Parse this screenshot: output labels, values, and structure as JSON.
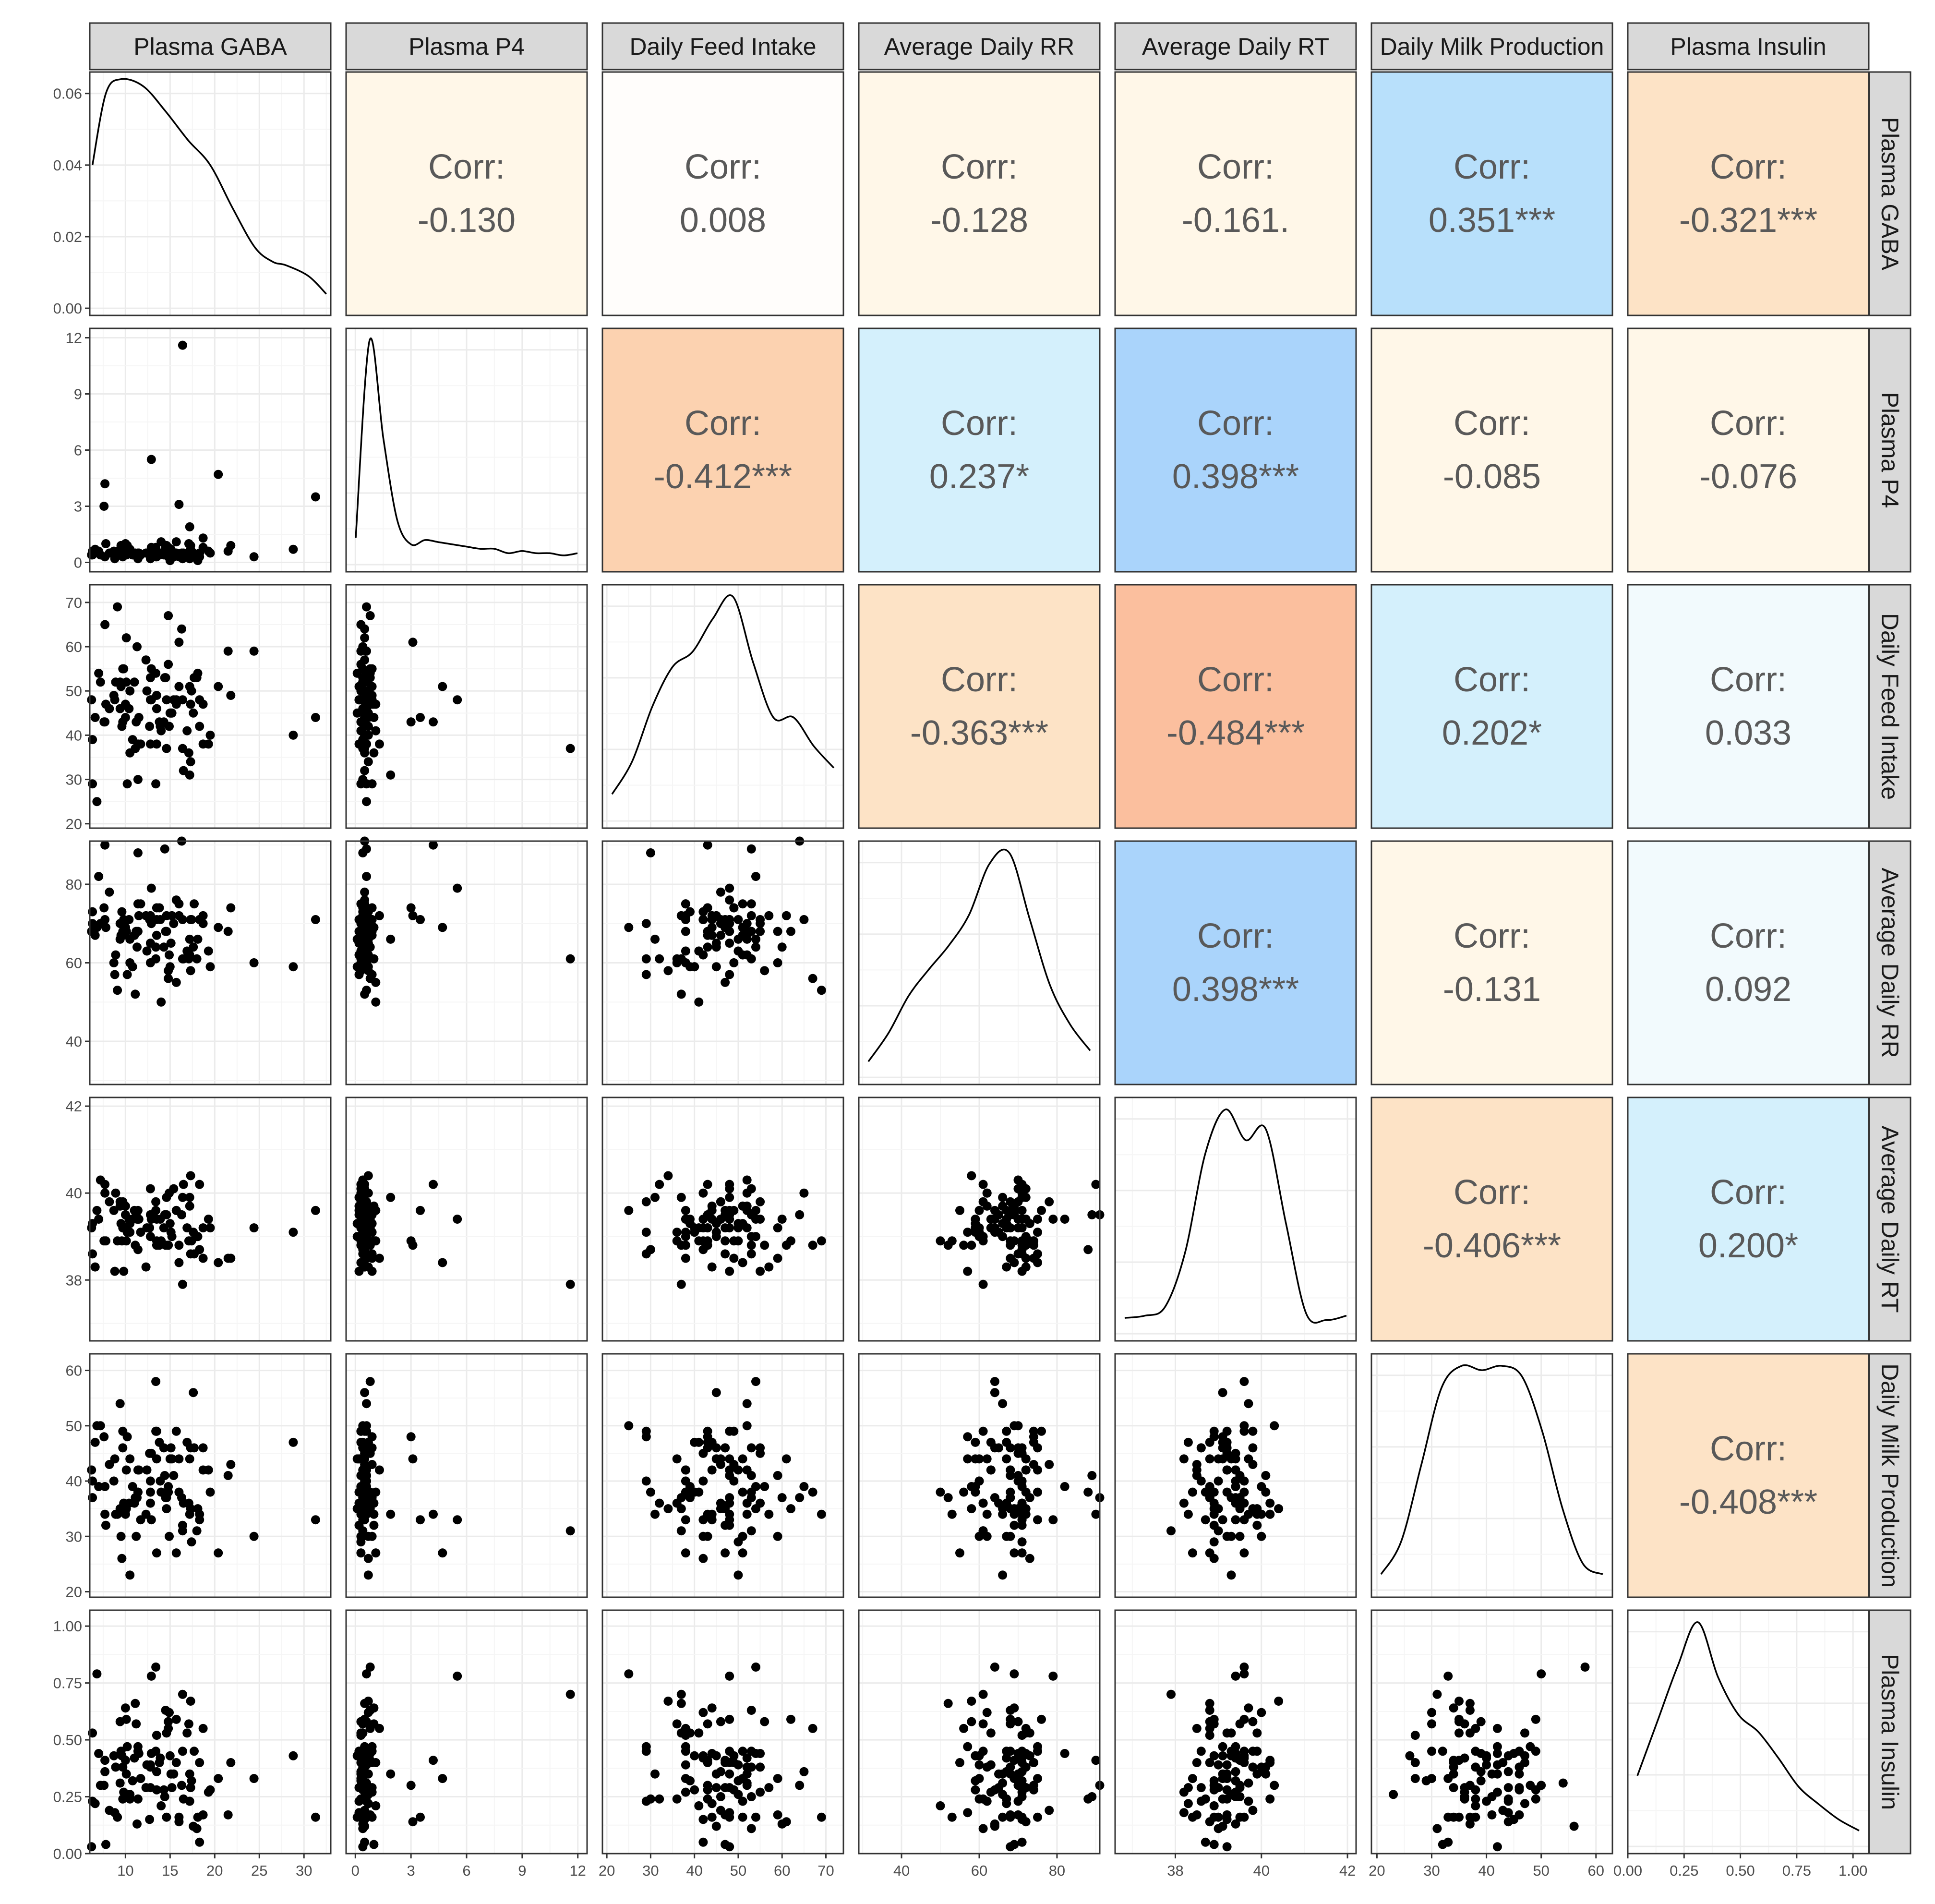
{
  "variables": [
    "Plasma GABA",
    "Plasma P4",
    "Daily Feed Intake",
    "Average Daily RR",
    "Average Daily RT",
    "Daily Milk Production",
    "Plasma Insulin"
  ],
  "corr_label": "Corr:",
  "colors": {
    "strip_fill": "#d9d9d9",
    "grid_major": "#ebebeb",
    "grid_minor": "#f5f5f5",
    "point": "#000000",
    "neg_light": "#fff7e8",
    "neg_mid": "#fde3c6",
    "neg_strong": "#fcd2b0",
    "neg_stronger": "#fbbf9e",
    "pos_lightest": "#f2fafd",
    "pos_light": "#d4f0fc",
    "pos_strong": "#b8e0fb",
    "pos_stronger": "#aad4fb",
    "neutral": "#fffdfb"
  },
  "chart_data": {
    "type": "scatter",
    "plot_kind": "pairs-matrix",
    "axis_ticks": [
      [
        "10",
        "15",
        "20",
        "25",
        "30"
      ],
      [
        "0",
        "3",
        "6",
        "9",
        "12"
      ],
      [
        "20",
        "30",
        "40",
        "50",
        "60",
        "70"
      ],
      [
        "40",
        "60",
        "80"
      ],
      [
        "38",
        "40",
        "42"
      ],
      [
        "20",
        "30",
        "40",
        "50",
        "60"
      ],
      [
        "0.00",
        "0.25",
        "0.50",
        "0.75",
        "1.00"
      ]
    ],
    "diag_ticks": [
      "0.00",
      "0.02",
      "0.04",
      "0.06"
    ],
    "diag_ylim": [
      -0.002,
      0.066
    ],
    "ranges": [
      [
        6,
        33
      ],
      [
        -0.5,
        12.5
      ],
      [
        19,
        74
      ],
      [
        29,
        91
      ],
      [
        36.6,
        42.2
      ],
      [
        19,
        63
      ],
      [
        0.0,
        1.07
      ]
    ],
    "densities": [
      [
        0.04,
        0.06,
        0.064,
        0.062,
        0.055,
        0.047,
        0.04,
        0.028,
        0.017,
        0.013,
        0.012,
        0.009,
        0.004
      ],
      [
        0.1,
        1.0,
        0.55,
        0.18,
        0.07,
        0.09,
        0.08,
        0.07,
        0.06,
        0.05,
        0.05,
        0.03,
        0.04,
        0.03,
        0.03,
        0.02,
        0.03
      ],
      [
        0.1,
        0.25,
        0.5,
        0.68,
        0.75,
        0.9,
        1.0,
        0.7,
        0.45,
        0.45,
        0.32,
        0.22
      ],
      [
        0.05,
        0.18,
        0.35,
        0.47,
        0.58,
        0.72,
        0.95,
        1.0,
        0.7,
        0.4,
        0.22,
        0.1
      ],
      [
        0.05,
        0.06,
        0.1,
        0.35,
        0.8,
        1.0,
        0.86,
        0.91,
        0.48,
        0.07,
        0.04,
        0.06
      ],
      [
        0.05,
        0.2,
        0.55,
        0.9,
        1.0,
        0.98,
        1.0,
        0.95,
        0.7,
        0.35,
        0.1,
        0.05
      ],
      [
        0.3,
        0.55,
        0.8,
        1.0,
        0.75,
        0.58,
        0.5,
        0.38,
        0.25,
        0.17,
        0.1,
        0.05
      ]
    ],
    "correlations": [
      {
        "row": 0,
        "col": 1,
        "value": "-0.130",
        "color": "neg_light"
      },
      {
        "row": 0,
        "col": 2,
        "value": "0.008",
        "color": "neutral"
      },
      {
        "row": 0,
        "col": 3,
        "value": "-0.128",
        "color": "neg_light"
      },
      {
        "row": 0,
        "col": 4,
        "value": "-0.161.",
        "color": "neg_light"
      },
      {
        "row": 0,
        "col": 5,
        "value": "0.351***",
        "color": "pos_strong"
      },
      {
        "row": 0,
        "col": 6,
        "value": "-0.321***",
        "color": "neg_mid"
      },
      {
        "row": 1,
        "col": 2,
        "value": "-0.412***",
        "color": "neg_strong"
      },
      {
        "row": 1,
        "col": 3,
        "value": "0.237*",
        "color": "pos_light"
      },
      {
        "row": 1,
        "col": 4,
        "value": "0.398***",
        "color": "pos_stronger"
      },
      {
        "row": 1,
        "col": 5,
        "value": "-0.085",
        "color": "neg_light"
      },
      {
        "row": 1,
        "col": 6,
        "value": "-0.076",
        "color": "neg_light"
      },
      {
        "row": 2,
        "col": 3,
        "value": "-0.363***",
        "color": "neg_mid"
      },
      {
        "row": 2,
        "col": 4,
        "value": "-0.484***",
        "color": "neg_stronger"
      },
      {
        "row": 2,
        "col": 5,
        "value": "0.202*",
        "color": "pos_light"
      },
      {
        "row": 2,
        "col": 6,
        "value": "0.033",
        "color": "pos_lightest"
      },
      {
        "row": 3,
        "col": 4,
        "value": "0.398***",
        "color": "pos_stronger"
      },
      {
        "row": 3,
        "col": 5,
        "value": "-0.131",
        "color": "neg_light"
      },
      {
        "row": 3,
        "col": 6,
        "value": "0.092",
        "color": "pos_lightest"
      },
      {
        "row": 4,
        "col": 5,
        "value": "-0.406***",
        "color": "neg_mid"
      },
      {
        "row": 4,
        "col": 6,
        "value": "0.200*",
        "color": "pos_light"
      },
      {
        "row": 5,
        "col": 6,
        "value": "-0.408***",
        "color": "neg_mid"
      }
    ],
    "points": [
      [
        7.2,
        0.4,
        52,
        70,
        40.3,
        50,
        0.3
      ],
      [
        10.0,
        1.0,
        44,
        69,
        39.7,
        34,
        0.64
      ],
      [
        12.9,
        5.5,
        48,
        79,
        39.4,
        33,
        0.78
      ],
      [
        16.4,
        11.6,
        37,
        61,
        37.9,
        31,
        0.7
      ],
      [
        16.5,
        0.5,
        32,
        61,
        40.2,
        36,
        0.24
      ],
      [
        7.7,
        4.2,
        43,
        90,
        40.2,
        34,
        0.41
      ],
      [
        7.8,
        1.0,
        47,
        69,
        38.9,
        32,
        0.04
      ],
      [
        18.7,
        1.3,
        38,
        72,
        38.5,
        42,
        0.55
      ],
      [
        8.2,
        0.5,
        46,
        78,
        39.8,
        43,
        0.19
      ],
      [
        13.4,
        0.3,
        29,
        61,
        39.8,
        49,
        0.45
      ],
      [
        8.9,
        0.4,
        52,
        62,
        40.0,
        34,
        0.38
      ],
      [
        6.2,
        0.4,
        48,
        68,
        39.2,
        42,
        0.03
      ],
      [
        18.3,
        0.3,
        48,
        71,
        40.2,
        34,
        0.4
      ],
      [
        31.3,
        3.5,
        44,
        71,
        39.6,
        33,
        0.16
      ],
      [
        11.4,
        0.4,
        30,
        88,
        38.7,
        38,
        0.24
      ],
      [
        11.1,
        0.5,
        37,
        52,
        38.8,
        37,
        0.66
      ],
      [
        6.8,
        0.6,
        25,
        69,
        39.6,
        50,
        0.79
      ],
      [
        10.2,
        0.9,
        29,
        57,
        39.1,
        48,
        0.47
      ],
      [
        15.7,
        1.1,
        47,
        55,
        39.6,
        27,
        0.4
      ],
      [
        17.3,
        0.7,
        34,
        58,
        40.4,
        35,
        0.67
      ],
      [
        20.4,
        4.7,
        51,
        69,
        38.4,
        27,
        0.33
      ],
      [
        16.3,
        0.5,
        64,
        91,
        39.5,
        37,
        0.3
      ],
      [
        7.6,
        3.0,
        43,
        74,
        38.9,
        48,
        0.3
      ],
      [
        10.5,
        0.7,
        50,
        66,
        39.3,
        23,
        0.26
      ],
      [
        28.8,
        0.7,
        40,
        59,
        39.1,
        47,
        0.43
      ],
      [
        13.5,
        0.3,
        38,
        71,
        38.8,
        27,
        0.52
      ],
      [
        12.3,
        0.5,
        57,
        72,
        38.3,
        34,
        0.29
      ],
      [
        9.1,
        0.6,
        69,
        53,
        38.9,
        34,
        0.16
      ],
      [
        21.8,
        0.9,
        49,
        74,
        38.5,
        43,
        0.4
      ],
      [
        18.0,
        0.4,
        53,
        61,
        39.0,
        31,
        0.11
      ],
      [
        16.9,
        0.3,
        41,
        63,
        39.2,
        47,
        0.53
      ],
      [
        9.6,
        0.7,
        42,
        73,
        38.9,
        26,
        0.43
      ],
      [
        13.5,
        0.6,
        49,
        74,
        38.9,
        49,
        0.28
      ],
      [
        6.3,
        0.6,
        29,
        70,
        38.6,
        40,
        0.23
      ],
      [
        17.2,
        1.9,
        31,
        66,
        39.9,
        34,
        0.35
      ],
      [
        13.4,
        0.8,
        54,
        64,
        39.6,
        58,
        0.82
      ],
      [
        17.6,
        0.5,
        45,
        64,
        39.1,
        56,
        0.12
      ],
      [
        24.4,
        0.3,
        59,
        60,
        39.2,
        30,
        0.33
      ],
      [
        9.7,
        0.3,
        43,
        67,
        39.2,
        49,
        0.24
      ],
      [
        21.5,
        0.6,
        59,
        68,
        38.5,
        41,
        0.17
      ],
      [
        17.2,
        0.2,
        51,
        62,
        39.7,
        44,
        0.23
      ],
      [
        17.3,
        0.9,
        47,
        71,
        38.6,
        46,
        0.29
      ],
      [
        15.0,
        0.1,
        45,
        59,
        39.3,
        44,
        0.43
      ],
      [
        17.7,
        0.4,
        53,
        75,
        38.6,
        46,
        0.45
      ],
      [
        12.8,
        0.5,
        53,
        72,
        40.1,
        38,
        0.38
      ],
      [
        14.8,
        0.8,
        67,
        56,
        38.8,
        38,
        0.55
      ],
      [
        9.4,
        0.6,
        52,
        66,
        39.7,
        54,
        0.31
      ],
      [
        14.4,
        0.6,
        53,
        89,
        39.5,
        41,
        0.25
      ],
      [
        17.1,
        1.0,
        36,
        61,
        38.9,
        36,
        0.57
      ],
      [
        6.6,
        0.7,
        44,
        67,
        38.3,
        47,
        0.22
      ],
      [
        19.5,
        0.5,
        40,
        59,
        39.2,
        38,
        0.28
      ],
      [
        16.0,
        3.1,
        61,
        72,
        38.8,
        44,
        0.14
      ],
      [
        18.1,
        0.1,
        54,
        66,
        39.0,
        35,
        0.16
      ],
      [
        10.1,
        0.5,
        62,
        68,
        38.9,
        35,
        0.59
      ],
      [
        14.0,
        1.1,
        41,
        50,
        38.9,
        38,
        0.21
      ],
      [
        18.7,
        0.8,
        47,
        70,
        39.2,
        46,
        0.17
      ],
      [
        9.8,
        0.9,
        55,
        71,
        38.2,
        36,
        0.27
      ],
      [
        12.8,
        0.2,
        48,
        65,
        39.5,
        36,
        0.29
      ],
      [
        14.6,
        0.4,
        37,
        72,
        39.9,
        35,
        0.53
      ],
      [
        18.3,
        0.5,
        42,
        71,
        38.7,
        33,
        0.05
      ],
      [
        11.4,
        0.2,
        38,
        68,
        39.6,
        38,
        0.45
      ],
      [
        12.9,
        0.8,
        55,
        70,
        39.4,
        45,
        0.44
      ],
      [
        16.0,
        0.3,
        51,
        75,
        38.4,
        38,
        0.16
      ],
      [
        14.3,
        0.4,
        43,
        64,
        39.2,
        46,
        0.28
      ],
      [
        11.7,
        0.4,
        38,
        75,
        39.1,
        33,
        0.33
      ],
      [
        11.3,
        0.4,
        60,
        64,
        39.4,
        37,
        0.13
      ],
      [
        9.5,
        0.9,
        51,
        67,
        39.3,
        30,
        0.45
      ],
      [
        14.5,
        0.8,
        53,
        68,
        38.8,
        37,
        0.63
      ],
      [
        6.3,
        0.4,
        39,
        73,
        39.3,
        37,
        0.53
      ],
      [
        8.8,
        0.2,
        48,
        57,
        38.2,
        44,
        0.18
      ],
      [
        15.2,
        0.5,
        45,
        72,
        39.0,
        44,
        0.29
      ],
      [
        9.4,
        0.6,
        46,
        70,
        39.8,
        35,
        0.58
      ],
      [
        14.9,
        0.7,
        42,
        62,
        40.0,
        30,
        0.62
      ],
      [
        19.3,
        0.6,
        38,
        63,
        39.4,
        42,
        0.27
      ],
      [
        14.8,
        0.3,
        56,
        58,
        38.8,
        39,
        0.58
      ],
      [
        10.4,
        0.5,
        46,
        71,
        39.4,
        36,
        0.25
      ],
      [
        17.4,
        0.3,
        50,
        71,
        38.9,
        29,
        0.32
      ],
      [
        16.4,
        0.2,
        48,
        71,
        39.9,
        32,
        0.45
      ],
      [
        15.1,
        0.7,
        45,
        65,
        39.1,
        46,
        0.35
      ],
      [
        7.7,
        0.3,
        65,
        71,
        40.0,
        39,
        0.36
      ],
      [
        11.4,
        0.5,
        38,
        75,
        39.4,
        42,
        0.47
      ],
      [
        7.0,
        0.6,
        54,
        82,
        39.4,
        39,
        0.44
      ],
      [
        9.7,
        0.4,
        55,
        68,
        39.8,
        46,
        0.38
      ],
      [
        11.5,
        0.5,
        44,
        72,
        39.4,
        42,
        0.44
      ],
      [
        10.5,
        0.5,
        36,
        60,
        39.1,
        44,
        0.24
      ],
      [
        15.7,
        0.5,
        48,
        76,
        39.6,
        49,
        0.59
      ],
      [
        10.0,
        0.8,
        47,
        69,
        39.5,
        35,
        0.41
      ],
      [
        13.9,
        0.5,
        42,
        71,
        39.4,
        40,
        0.42
      ],
      [
        14.6,
        0.9,
        48,
        68,
        39.5,
        37,
        0.16
      ],
      [
        13.8,
        0.4,
        43,
        74,
        38.8,
        47,
        0.4
      ],
      [
        11.2,
        0.4,
        43,
        68,
        39.5,
        30,
        0.57
      ],
      [
        10.8,
        0.4,
        39,
        59,
        39.4,
        39,
        0.32
      ],
      [
        12.8,
        0.6,
        38,
        60,
        39.0,
        40,
        0.39
      ],
      [
        10.1,
        0.4,
        52,
        68,
        39.2,
        42,
        0.35
      ],
      [
        12.7,
        0.5,
        42,
        71,
        39.2,
        45,
        0.15
      ],
      [
        8.7,
        0.6,
        49,
        60,
        39.6,
        40,
        0.43
      ],
      [
        11.0,
        0.4,
        52,
        67,
        39.6,
        36,
        0.42
      ],
      [
        15.4,
        0.3,
        48,
        70,
        40.1,
        41,
        0.35
      ],
      [
        13.5,
        0.4,
        46,
        67,
        39.4,
        44,
        0.36
      ],
      [
        12.4,
        0.5,
        50,
        63,
        39.2,
        42,
        0.39
      ]
    ]
  }
}
